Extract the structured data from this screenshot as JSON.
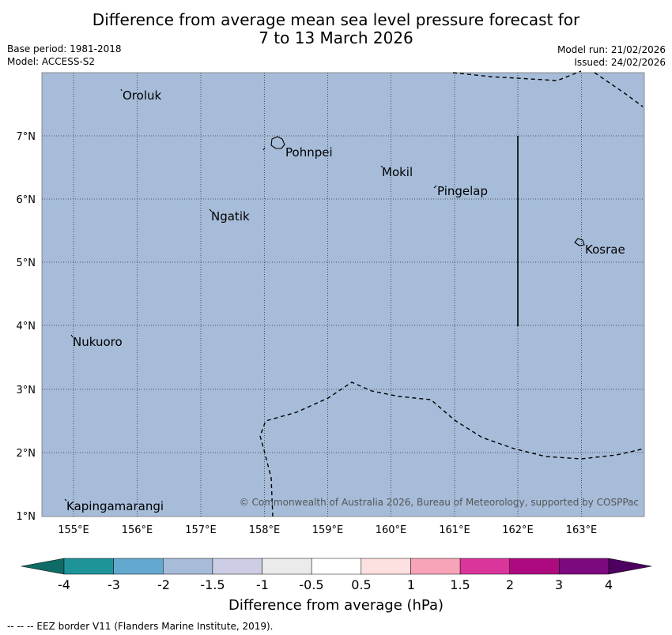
{
  "header": {
    "title_line1": "Difference from average mean sea level pressure forecast for",
    "title_line2": "7 to 13 March 2026",
    "base_period": "Base period: 1981-2018",
    "model": "Model: ACCESS-S2",
    "model_run": "Model run: 21/02/2026",
    "issued": "Issued: 24/02/2026"
  },
  "map": {
    "fill_color": "#a6bcd9",
    "lon_labels": [
      "155°E",
      "156°E",
      "157°E",
      "158°E",
      "159°E",
      "160°E",
      "161°E",
      "162°E",
      "163°E"
    ],
    "lat_labels": [
      "7°N",
      "6°N",
      "5°N",
      "4°N",
      "3°N",
      "2°N",
      "1°N"
    ],
    "places": [
      {
        "name": "Oroluk"
      },
      {
        "name": "Pohnpei"
      },
      {
        "name": "Mokil"
      },
      {
        "name": "Pingelap"
      },
      {
        "name": "Ngatik"
      },
      {
        "name": "Kosrae"
      },
      {
        "name": "Nukuoro"
      },
      {
        "name": "Kapingamarangi"
      }
    ],
    "copyright": "© Commonwealth of Australia 2026, Bureau of Meteorology, supported by COSPPac"
  },
  "colorbar": {
    "colors": [
      "#0f6b66",
      "#1e9499",
      "#63a8cf",
      "#a6bcd9",
      "#cdcde6",
      "#ebebeb",
      "#ffffff",
      "#fde0e0",
      "#f7a3b8",
      "#d9359a",
      "#ad0a7f",
      "#7d097f",
      "#4d0060"
    ],
    "tick_labels": [
      "-4",
      "-3",
      "-2",
      "-1.5",
      "-1",
      "-0.5",
      "0.5",
      "1",
      "1.5",
      "2",
      "3",
      "4"
    ],
    "label": "Difference from average (hPa)"
  },
  "footer": {
    "eez_note": "--  --  -- EEZ border V11 (Flanders Marine Institute, 2019)."
  }
}
